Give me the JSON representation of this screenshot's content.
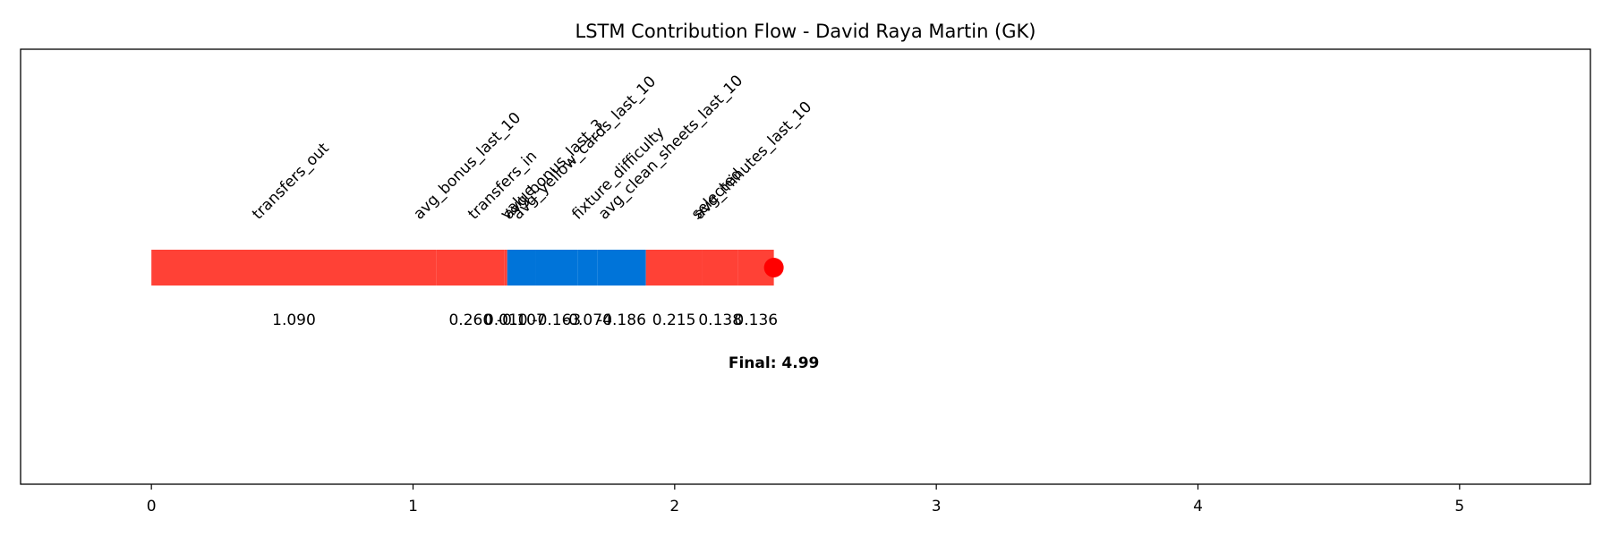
{
  "chart_data": {
    "type": "waterfall-flow",
    "title": "LSTM Contribution Flow - David Raya Martin (GK)",
    "categories": [
      "transfers_out",
      "avg_bonus_last_10",
      "transfers_in",
      "value",
      "avg_bonus_last_3",
      "avg_yellow_cards_last_10",
      "fixture_difficulty",
      "avg_clean_sheets_last_10",
      "selected",
      "avg_minutes_last_10"
    ],
    "values": [
      1.09,
      0.26,
      0.01,
      -0.107,
      -0.163,
      -0.074,
      -0.186,
      0.215,
      0.138,
      0.136
    ],
    "value_labels": [
      "1.090",
      "0.260",
      "0.010",
      "-0.107",
      "-0.163",
      "-0.074",
      "-0.186",
      "0.215",
      "0.138",
      "0.136"
    ],
    "positive_color": "#ff4136",
    "negative_color": "#0074d9",
    "end_color": "#ff0000",
    "final_label": "Final: 4.99",
    "xlim": [
      -0.5,
      5.5
    ],
    "xticks": [
      0,
      1,
      2,
      3,
      4,
      5
    ]
  }
}
